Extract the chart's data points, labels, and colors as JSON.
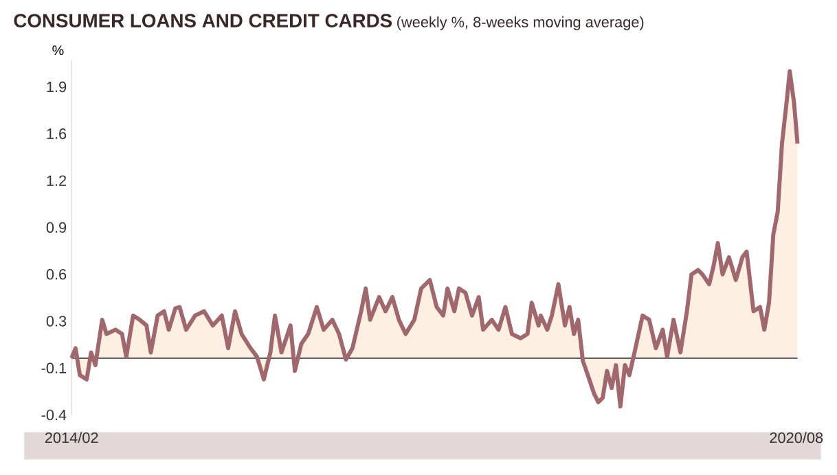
{
  "chart_data": {
    "type": "area",
    "title": "CONSUMER LOANS AND CREDIT CARDS",
    "subtitle": "(weekly %, 8-weeks moving average)",
    "ylabel": "%",
    "xlim": [
      "2014-02-01",
      "2020-08-05"
    ],
    "ylim": [
      -0.4,
      2.1
    ],
    "xticks": [
      {
        "value": "2014-02",
        "label": "2014/02"
      },
      {
        "value": "2020-08",
        "label": "2020/08"
      }
    ],
    "yticks": [
      {
        "value": -0.4,
        "label": "-0.4"
      },
      {
        "value": -0.07,
        "label": "-0.1"
      },
      {
        "value": 0.26,
        "label": "0.3"
      },
      {
        "value": 0.59,
        "label": "0.6"
      },
      {
        "value": 0.92,
        "label": "0.9"
      },
      {
        "value": 1.25,
        "label": "1.2"
      },
      {
        "value": 1.58,
        "label": "1.6"
      },
      {
        "value": 1.91,
        "label": "1.9"
      }
    ],
    "ref_lines": [
      {
        "axis": "y",
        "value": 0,
        "color": "#000000"
      }
    ],
    "series": [
      {
        "color": "#a0686c",
        "x": [
          "2014-02-01",
          "2014-02-14",
          "2014-02-28",
          "2014-03-20",
          "2014-04-04",
          "2014-04-18",
          "2014-05-10",
          "2014-05-24",
          "2014-06-23",
          "2014-07-14",
          "2014-07-28",
          "2014-08-20",
          "2014-09-11",
          "2014-10-03",
          "2014-10-17",
          "2014-11-09",
          "2014-11-30",
          "2014-12-15",
          "2015-01-06",
          "2015-01-20",
          "2015-02-11",
          "2015-03-10",
          "2015-04-09",
          "2015-05-07",
          "2015-06-06",
          "2015-06-27",
          "2015-07-19",
          "2015-08-10",
          "2015-09-09",
          "2015-09-30",
          "2015-10-22",
          "2015-11-13",
          "2015-11-28",
          "2015-12-19",
          "2016-01-18",
          "2016-02-02",
          "2016-02-23",
          "2016-03-15",
          "2016-04-13",
          "2016-05-05",
          "2016-06-03",
          "2016-06-25",
          "2016-07-17",
          "2016-08-08",
          "2016-09-06",
          "2016-09-21",
          "2016-10-05",
          "2016-11-04",
          "2016-11-25",
          "2016-12-17",
          "2017-01-08",
          "2017-01-30",
          "2017-02-28",
          "2017-03-20",
          "2017-04-18",
          "2017-05-10",
          "2017-06-01",
          "2017-06-15",
          "2017-07-07",
          "2017-07-22",
          "2017-08-13",
          "2017-09-04",
          "2017-09-26",
          "2017-10-10",
          "2017-11-08",
          "2017-11-30",
          "2017-12-22",
          "2018-01-13",
          "2018-02-11",
          "2018-03-03",
          "2018-03-17",
          "2018-04-09",
          "2018-04-16",
          "2018-05-07",
          "2018-05-22",
          "2018-06-13",
          "2018-07-04",
          "2018-07-19",
          "2018-08-03",
          "2018-08-17",
          "2018-09-02",
          "2018-09-23",
          "2018-10-08",
          "2018-10-22",
          "2018-11-06",
          "2018-11-20",
          "2018-12-05",
          "2018-12-19",
          "2019-01-03",
          "2019-01-18",
          "2019-02-02",
          "2019-02-22",
          "2019-03-15",
          "2019-04-06",
          "2019-04-28",
          "2019-05-20",
          "2019-06-04",
          "2019-06-25",
          "2019-07-17",
          "2019-08-08",
          "2019-08-23",
          "2019-09-14",
          "2019-09-28",
          "2019-10-20",
          "2019-11-04",
          "2019-11-18",
          "2019-12-03",
          "2019-12-24",
          "2020-01-16",
          "2020-02-07",
          "2020-02-21",
          "2020-03-13",
          "2020-04-04",
          "2020-04-18",
          "2020-05-03",
          "2020-05-17",
          "2020-06-01",
          "2020-06-15",
          "2020-06-30",
          "2020-07-10",
          "2020-07-24",
          "2020-08-05"
        ],
        "values": [
          0.0,
          0.07,
          -0.12,
          -0.15,
          0.04,
          -0.05,
          0.27,
          0.17,
          0.2,
          0.17,
          0.01,
          0.3,
          0.27,
          0.23,
          0.04,
          0.3,
          0.33,
          0.2,
          0.35,
          0.36,
          0.2,
          0.3,
          0.33,
          0.23,
          0.3,
          0.07,
          0.33,
          0.17,
          0.07,
          0.01,
          -0.15,
          0.04,
          0.3,
          0.04,
          0.23,
          -0.09,
          0.1,
          0.17,
          0.36,
          0.2,
          0.27,
          0.17,
          -0.01,
          0.07,
          0.33,
          0.49,
          0.27,
          0.43,
          0.33,
          0.43,
          0.27,
          0.17,
          0.27,
          0.49,
          0.55,
          0.36,
          0.3,
          0.49,
          0.33,
          0.49,
          0.46,
          0.3,
          0.43,
          0.2,
          0.27,
          0.2,
          0.36,
          0.17,
          0.14,
          0.17,
          0.39,
          0.23,
          0.3,
          0.2,
          0.3,
          0.52,
          0.23,
          0.36,
          0.17,
          0.27,
          -0.02,
          -0.15,
          -0.25,
          -0.31,
          -0.28,
          -0.09,
          -0.21,
          -0.05,
          -0.34,
          -0.05,
          -0.12,
          0.07,
          0.3,
          0.27,
          0.07,
          0.2,
          0.01,
          0.27,
          0.04,
          0.33,
          0.59,
          0.62,
          0.59,
          0.52,
          0.65,
          0.81,
          0.59,
          0.71,
          0.55,
          0.71,
          0.75,
          0.33,
          0.36,
          0.2,
          0.39,
          0.87,
          1.03,
          1.51,
          1.8,
          2.02,
          1.8,
          1.51
        ]
      }
    ]
  }
}
